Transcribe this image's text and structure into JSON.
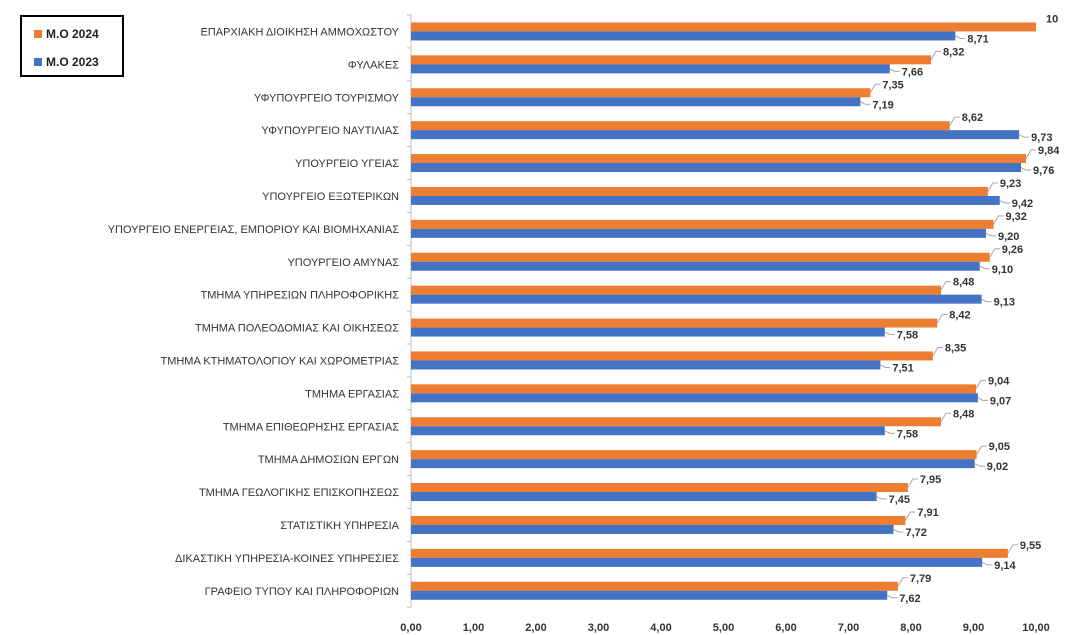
{
  "colors": {
    "series_2024": "#ED7D31",
    "series_2023": "#4472C4"
  },
  "chart_data": {
    "type": "bar",
    "orientation": "horizontal",
    "categories": [
      "ΕΠΑΡΧΙΑΚΗ ΔΙΟΙΚΗΣΗ ΑΜΜΟΧΩΣΤΟΥ",
      "ΦΥΛΑΚΕΣ",
      "ΥΦΥΠΟΥΡΓΕΙΟ ΤΟΥΡΙΣΜΟΥ",
      "ΥΦΥΠΟΥΡΓΕΙΟ ΝΑΥΤΙΛΙΑΣ",
      "ΥΠΟΥΡΓΕΙΟ ΥΓΕΙΑΣ",
      "ΥΠΟΥΡΓΕΙΟ ΕΞΩΤΕΡΙΚΩΝ",
      "ΥΠΟΥΡΓΕΙΟ ΕΝΕΡΓΕΙΑΣ, ΕΜΠΟΡΙΟΥ ΚΑΙ ΒΙΟΜΗΧΑΝΙΑΣ",
      "ΥΠΟΥΡΓΕΙΟ ΑΜΥΝΑΣ",
      "ΤΜΗΜΑ ΥΠΗΡΕΣΙΩΝ ΠΛΗΡΟΦΟΡΙΚΗΣ",
      "ΤΜΗΜΑ ΠΟΛΕΟΔΟΜΙΑΣ ΚΑΙ ΟΙΚΗΣΕΩΣ",
      "ΤΜΗΜΑ ΚΤΗΜΑΤΟΛΟΓΙΟΥ ΚΑΙ ΧΩΡΟΜΕΤΡΙΑΣ",
      "ΤΜΗΜΑ ΕΡΓΑΣΙΑΣ",
      "ΤΜΗΜΑ ΕΠΙΘΕΩΡΗΣΗΣ ΕΡΓΑΣΙΑΣ",
      "ΤΜΗΜΑ ΔΗΜΟΣΙΩΝ ΕΡΓΩΝ",
      "ΤΜΗΜΑ ΓΕΩΛΟΓΙΚΗΣ ΕΠΙΣΚΟΠΗΣΕΩΣ",
      "ΣΤΑΤΙΣΤΙΚΗ ΥΠΗΡΕΣΙΑ",
      "ΔΙΚΑΣΤΙΚΗ ΥΠΗΡΕΣΙΑ-ΚΟΙΝΕΣ ΥΠΗΡΕΣΙΕΣ",
      "ΓΡΑΦΕΙΟ ΤΥΠΟΥ ΚΑΙ ΠΛΗΡΟΦΟΡΙΩΝ"
    ],
    "series": [
      {
        "name": "Μ.Ο 2024",
        "values": [
          10,
          8.32,
          7.35,
          8.62,
          9.84,
          9.23,
          9.32,
          9.26,
          8.48,
          8.42,
          8.35,
          9.04,
          8.48,
          9.05,
          7.95,
          7.91,
          9.55,
          7.79
        ],
        "labels": [
          "10",
          "8,32",
          "7,35",
          "8,62",
          "9,84",
          "9,23",
          "9,32",
          "9,26",
          "8,48",
          "8,42",
          "8,35",
          "9,04",
          "8,48",
          "9,05",
          "7,95",
          "7,91",
          "9,55",
          "7,79"
        ]
      },
      {
        "name": "Μ.Ο 2023",
        "values": [
          8.71,
          7.66,
          7.19,
          9.73,
          9.76,
          9.42,
          9.2,
          9.1,
          9.13,
          7.58,
          7.51,
          9.07,
          7.58,
          9.02,
          7.45,
          7.72,
          9.14,
          7.62
        ],
        "labels": [
          "8,71",
          "7,66",
          "7,19",
          "9,73",
          "9,76",
          "9,42",
          "9,20",
          "9,10",
          "9,13",
          "7,58",
          "7,51",
          "9,07",
          "7,58",
          "9,02",
          "7,45",
          "7,72",
          "9,14",
          "7,62"
        ]
      }
    ],
    "xlim": [
      0,
      10
    ],
    "xticks": [
      "0,00",
      "1,00",
      "2,00",
      "3,00",
      "4,00",
      "5,00",
      "6,00",
      "7,00",
      "8,00",
      "9,00",
      "10,00"
    ],
    "title": "",
    "xlabel": "",
    "ylabel": "",
    "grid": false,
    "legend_position": "top-left"
  }
}
